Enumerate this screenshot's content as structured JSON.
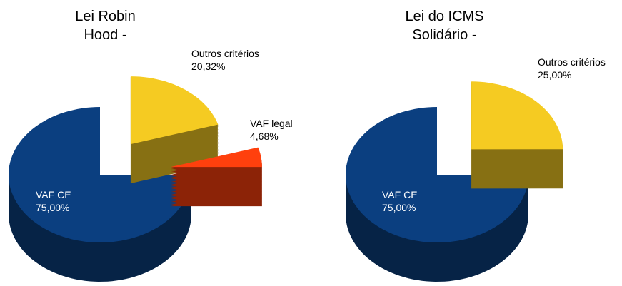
{
  "chart_data": [
    {
      "type": "pie3d",
      "title": "Lei Robin Hood -",
      "labels": [
        "Outros critérios",
        "VAF legal",
        "VAF CE"
      ],
      "values": [
        20.32,
        4.68,
        75
      ],
      "value_labels": [
        "20,32%",
        "4,68%",
        "75,00%"
      ],
      "colors": [
        "#f5cb22",
        "#ff400d",
        "#0b3f80"
      ]
    },
    {
      "type": "pie3d",
      "title": "Lei do ICMS Solidário -",
      "labels": [
        "Outros critérios",
        "VAF CE"
      ],
      "values": [
        25,
        75
      ],
      "value_labels": [
        "25,00%",
        "75,00%"
      ],
      "colors": [
        "#f5cb22",
        "#0b3f80"
      ]
    }
  ]
}
